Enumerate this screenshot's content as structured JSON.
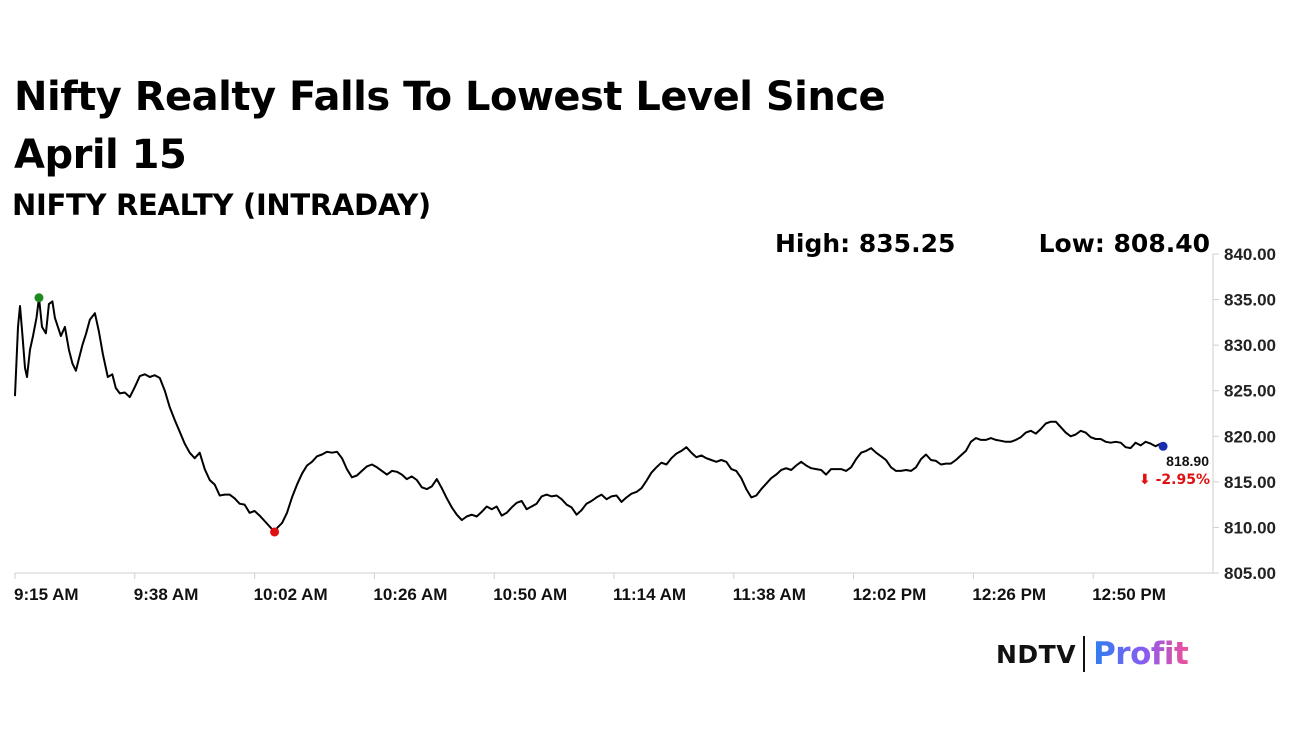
{
  "header": {
    "title": "Nifty Realty Falls To Lowest Level Since April 15",
    "subtitle": "NIFTY REALTY (INTRADAY)",
    "high_label": "High: 835.25",
    "low_label": "Low: 808.40"
  },
  "brand": {
    "ndtv": "NDTV",
    "profit": "Profit"
  },
  "chart_data": {
    "type": "line",
    "title": "NIFTY REALTY (INTRADAY)",
    "xlabel": "",
    "ylabel": "",
    "x_ticks": [
      "9:15 AM",
      "9:38 AM",
      "10:02 AM",
      "10:26 AM",
      "10:50 AM",
      "11:14 AM",
      "11:38 AM",
      "12:02 PM",
      "12:26 PM",
      "12:50 PM"
    ],
    "x_range_minutes_since_open": [
      0,
      240
    ],
    "y_ticks": [
      "840.00",
      "835.00",
      "830.00",
      "825.00",
      "820.00",
      "815.00",
      "810.00",
      "805.00"
    ],
    "ylim": [
      805,
      840
    ],
    "grid": false,
    "series": [
      {
        "color": "#000000",
        "points": [
          [
            0,
            824.5
          ],
          [
            0.6,
            832
          ],
          [
            1,
            834.3
          ],
          [
            1.5,
            831
          ],
          [
            2,
            827.5
          ],
          [
            2.4,
            826.5
          ],
          [
            3,
            829.5
          ],
          [
            3.6,
            831
          ],
          [
            4.3,
            833
          ],
          [
            4.8,
            835.2
          ],
          [
            5.4,
            832
          ],
          [
            6.2,
            831.3
          ],
          [
            6.8,
            834.5
          ],
          [
            7.5,
            834.8
          ],
          [
            8,
            833
          ],
          [
            8.6,
            832
          ],
          [
            9.2,
            831
          ],
          [
            10,
            832
          ],
          [
            10.8,
            829.5
          ],
          [
            11.5,
            828
          ],
          [
            12.2,
            827.2
          ],
          [
            12.8,
            828.5
          ],
          [
            13.5,
            830
          ],
          [
            14.2,
            831.2
          ],
          [
            15,
            832.8
          ],
          [
            16,
            833.5
          ],
          [
            16.8,
            831.5
          ],
          [
            17.6,
            829
          ],
          [
            18.6,
            826.5
          ],
          [
            19.5,
            826.8
          ],
          [
            20.2,
            825.3
          ],
          [
            21,
            824.7
          ],
          [
            22,
            824.8
          ],
          [
            23,
            824.3
          ],
          [
            24,
            825.4
          ],
          [
            25,
            826.6
          ],
          [
            26,
            826.8
          ],
          [
            27,
            826.5
          ],
          [
            28,
            826.7
          ],
          [
            29,
            826.4
          ],
          [
            30,
            825
          ],
          [
            31,
            823.2
          ],
          [
            32,
            821.8
          ],
          [
            33,
            820.5
          ],
          [
            34,
            819.2
          ],
          [
            35,
            818.2
          ],
          [
            36,
            817.6
          ],
          [
            37,
            818.2
          ],
          [
            38,
            816.4
          ],
          [
            39,
            815.2
          ],
          [
            40,
            814.7
          ],
          [
            41,
            813.5
          ],
          [
            42,
            813.6
          ],
          [
            43,
            813.6
          ],
          [
            44,
            813.2
          ],
          [
            45,
            812.6
          ],
          [
            46,
            812.5
          ],
          [
            47,
            811.6
          ],
          [
            48,
            811.8
          ],
          [
            49,
            811.3
          ],
          [
            50,
            810.7
          ],
          [
            51,
            810.1
          ],
          [
            52,
            809.5
          ],
          [
            52.6,
            810
          ],
          [
            53.5,
            810.5
          ],
          [
            54.5,
            811.6
          ],
          [
            55.5,
            813.3
          ],
          [
            56.5,
            814.7
          ],
          [
            57.5,
            815.9
          ],
          [
            58.5,
            816.8
          ],
          [
            59.5,
            817.2
          ],
          [
            60.5,
            817.8
          ],
          [
            61.5,
            818
          ],
          [
            62.5,
            818.3
          ],
          [
            63.5,
            818.2
          ],
          [
            64.5,
            818.3
          ],
          [
            65.5,
            817.6
          ],
          [
            66.5,
            816.4
          ],
          [
            67.5,
            815.5
          ],
          [
            68.5,
            815.7
          ],
          [
            69.5,
            816.2
          ],
          [
            70.5,
            816.7
          ],
          [
            71.5,
            816.9
          ],
          [
            72.5,
            816.6
          ],
          [
            73.5,
            816.2
          ],
          [
            74.5,
            815.8
          ],
          [
            75.5,
            816.2
          ],
          [
            76.5,
            816.1
          ],
          [
            77.5,
            815.8
          ],
          [
            78.5,
            815.3
          ],
          [
            79.5,
            815.6
          ],
          [
            80.5,
            815.2
          ],
          [
            81.5,
            814.4
          ],
          [
            82.5,
            814.2
          ],
          [
            83.5,
            814.5
          ],
          [
            84.5,
            815.3
          ],
          [
            85.5,
            814.3
          ],
          [
            86.5,
            813.2
          ],
          [
            87.5,
            812.2
          ],
          [
            88.5,
            811.4
          ],
          [
            89.5,
            810.8
          ],
          [
            90.5,
            811.2
          ],
          [
            91.5,
            811.4
          ],
          [
            92.5,
            811.2
          ],
          [
            93.5,
            811.7
          ],
          [
            94.5,
            812.3
          ],
          [
            95.5,
            812
          ],
          [
            96.5,
            812.3
          ],
          [
            97.5,
            811.3
          ],
          [
            98.5,
            811.6
          ],
          [
            99.5,
            812.2
          ],
          [
            100.5,
            812.7
          ],
          [
            101.5,
            812.9
          ],
          [
            102.5,
            812
          ],
          [
            103.5,
            812.3
          ],
          [
            104.5,
            812.6
          ],
          [
            105.5,
            813.4
          ],
          [
            106.5,
            813.6
          ],
          [
            107.5,
            813.4
          ],
          [
            108.5,
            813.5
          ],
          [
            109.5,
            813.1
          ],
          [
            110.5,
            812.5
          ],
          [
            111.5,
            812.2
          ],
          [
            112.5,
            811.4
          ],
          [
            113.5,
            811.9
          ],
          [
            114.5,
            812.6
          ],
          [
            115.5,
            812.9
          ],
          [
            116.5,
            813.3
          ],
          [
            117.5,
            813.6
          ],
          [
            118.5,
            813.1
          ],
          [
            119.5,
            813.4
          ],
          [
            120.5,
            813.5
          ],
          [
            121.5,
            812.8
          ],
          [
            122.5,
            813.3
          ],
          [
            123.5,
            813.7
          ],
          [
            124.5,
            813.9
          ],
          [
            125.5,
            814.3
          ],
          [
            126.5,
            815.1
          ],
          [
            127.5,
            816
          ],
          [
            128.5,
            816.6
          ],
          [
            129.5,
            817.1
          ],
          [
            130.5,
            816.9
          ],
          [
            131.5,
            817.6
          ],
          [
            132.5,
            818.1
          ],
          [
            133.5,
            818.4
          ],
          [
            134.5,
            818.8
          ],
          [
            135.5,
            818.2
          ],
          [
            136.5,
            817.7
          ],
          [
            137.5,
            817.9
          ],
          [
            138.5,
            817.6
          ],
          [
            139.5,
            817.4
          ],
          [
            140.5,
            817.2
          ],
          [
            141.5,
            817.4
          ],
          [
            142.5,
            817.2
          ],
          [
            143.5,
            816.4
          ],
          [
            144.5,
            816.2
          ],
          [
            145.5,
            815.4
          ],
          [
            146.5,
            814.2
          ],
          [
            147.5,
            813.3
          ],
          [
            148.5,
            813.5
          ],
          [
            149.5,
            814.2
          ],
          [
            150.5,
            814.8
          ],
          [
            151.5,
            815.4
          ],
          [
            152.5,
            815.8
          ],
          [
            153.5,
            816.3
          ],
          [
            154.5,
            816.5
          ],
          [
            155.5,
            816.3
          ],
          [
            156.5,
            816.8
          ],
          [
            157.5,
            817.2
          ],
          [
            158.5,
            816.8
          ],
          [
            159.5,
            816.5
          ],
          [
            160.5,
            816.4
          ],
          [
            161.5,
            816.3
          ],
          [
            162.5,
            815.8
          ],
          [
            163.5,
            816.4
          ],
          [
            164.5,
            816.4
          ],
          [
            165.5,
            816.4
          ],
          [
            166.5,
            816.2
          ],
          [
            167.5,
            816.6
          ],
          [
            168.5,
            817.5
          ],
          [
            169.5,
            818.2
          ],
          [
            170.5,
            818.4
          ],
          [
            171.5,
            818.7
          ],
          [
            172.5,
            818.2
          ],
          [
            173.5,
            817.8
          ],
          [
            174.5,
            817.4
          ],
          [
            175.5,
            816.6
          ],
          [
            176.5,
            816.2
          ],
          [
            177.5,
            816.2
          ],
          [
            178.5,
            816.3
          ],
          [
            179.5,
            816.2
          ],
          [
            180.5,
            816.6
          ],
          [
            181.5,
            817.5
          ],
          [
            182.5,
            818
          ],
          [
            183.5,
            817.4
          ],
          [
            184.5,
            817.3
          ],
          [
            185.5,
            816.9
          ],
          [
            186.5,
            817
          ],
          [
            187.5,
            817
          ],
          [
            188.5,
            817.4
          ],
          [
            189.5,
            817.9
          ],
          [
            190.5,
            818.4
          ],
          [
            191.5,
            819.4
          ],
          [
            192.5,
            819.8
          ],
          [
            193.5,
            819.6
          ],
          [
            194.5,
            819.6
          ],
          [
            195.5,
            819.8
          ],
          [
            196.5,
            819.6
          ],
          [
            197.5,
            819.5
          ],
          [
            198.5,
            819.4
          ],
          [
            199.5,
            819.4
          ],
          [
            200.5,
            819.6
          ],
          [
            201.5,
            819.9
          ],
          [
            202.5,
            820.4
          ],
          [
            203.5,
            820.6
          ],
          [
            204.5,
            820.3
          ],
          [
            205.5,
            820.8
          ],
          [
            206.5,
            821.4
          ],
          [
            207.5,
            821.6
          ],
          [
            208.5,
            821.6
          ],
          [
            209.5,
            821
          ],
          [
            210.5,
            820.4
          ],
          [
            211.5,
            820
          ],
          [
            212.5,
            820.2
          ],
          [
            213.5,
            820.6
          ],
          [
            214.5,
            820.4
          ],
          [
            215.5,
            819.9
          ],
          [
            216.5,
            819.7
          ],
          [
            217.5,
            819.7
          ],
          [
            218.5,
            819.4
          ],
          [
            219.5,
            819.3
          ],
          [
            220.5,
            819.4
          ],
          [
            221.5,
            819.3
          ],
          [
            222.5,
            818.8
          ],
          [
            223.5,
            818.7
          ],
          [
            224.5,
            819.3
          ],
          [
            225.5,
            819
          ],
          [
            226.5,
            819.4
          ],
          [
            227.5,
            819.2
          ],
          [
            228.5,
            818.9
          ],
          [
            229.5,
            819.2
          ],
          [
            230,
            818.9
          ]
        ]
      }
    ],
    "markers": [
      {
        "kind": "high",
        "x": 4.8,
        "y": 835.2,
        "color": "#1e8a1e"
      },
      {
        "kind": "low",
        "x": 52,
        "y": 809.5,
        "color": "#e01010"
      },
      {
        "kind": "last",
        "x": 230,
        "y": 818.9,
        "color": "#1a2cb0"
      }
    ],
    "last_value": "818.90",
    "change": "-2.95%",
    "change_arrow": "⬇",
    "change_color": "#e01010"
  }
}
